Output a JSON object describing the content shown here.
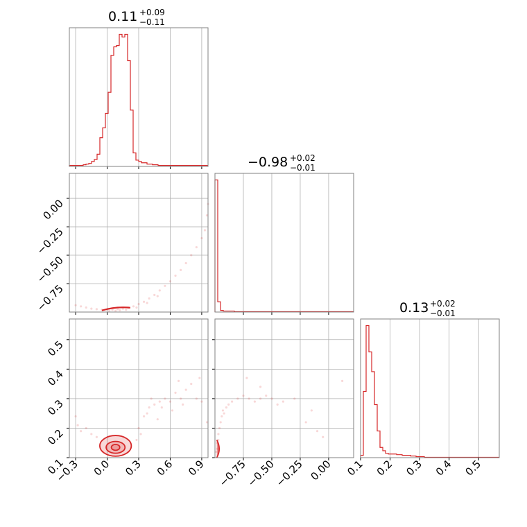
{
  "chart_data": {
    "type": "corner",
    "colors": {
      "series": "#d62728",
      "grid": "#b0b0b0",
      "frame": "#808080"
    },
    "grid": true,
    "parameters": [
      {
        "range": [
          -0.36,
          0.96
        ],
        "ticks": [
          -0.3,
          0.0,
          0.3,
          0.6,
          0.9
        ],
        "tick_labels": [
          "−0.3",
          "0.0",
          "0.3",
          "0.6",
          "0.9"
        ],
        "title_main": "0.11",
        "title_plus": "+0.09",
        "title_minus": "−0.11"
      },
      {
        "range": [
          -1.0,
          0.22
        ],
        "ticks": [
          -0.75,
          -0.5,
          -0.25,
          0.0
        ],
        "tick_labels": [
          "−0.75",
          "−0.50",
          "−0.25",
          "0.00"
        ],
        "title_main": "−0.98",
        "title_plus": "+0.02",
        "title_minus": "−0.01"
      },
      {
        "range": [
          0.1,
          0.57
        ],
        "ticks": [
          0.1,
          0.2,
          0.3,
          0.4,
          0.5
        ],
        "tick_labels": [
          "0.1",
          "0.2",
          "0.3",
          "0.4",
          "0.5"
        ],
        "title_main": "0.13",
        "title_plus": "+0.02",
        "title_minus": "−0.01"
      }
    ],
    "histograms": [
      {
        "param": 0,
        "bin_start": -0.36,
        "bin_width": 0.0264,
        "counts": [
          1,
          1,
          1,
          1,
          1,
          2,
          3,
          4,
          7,
          10,
          18,
          43,
          58,
          80,
          112,
          168,
          181,
          183,
          200,
          196,
          200,
          160,
          85,
          20,
          9,
          7,
          5,
          5,
          3,
          3,
          2,
          2,
          1,
          1,
          1,
          1,
          1,
          1,
          1,
          1,
          1,
          1,
          1,
          1,
          1,
          1,
          1,
          1,
          1,
          1
        ]
      },
      {
        "param": 1,
        "bin_start": -1.0,
        "bin_width": 0.0244,
        "counts": [
          200,
          15,
          2,
          1,
          1,
          1,
          1,
          0,
          0,
          0,
          0,
          0,
          0,
          0,
          0,
          0,
          0,
          0,
          0,
          0,
          0,
          0,
          0,
          0,
          0,
          0,
          0,
          0,
          0,
          0,
          0,
          0,
          0,
          0,
          0,
          0,
          0,
          0,
          0,
          0,
          0,
          0,
          0,
          0,
          0,
          0,
          0,
          0,
          0,
          0
        ]
      },
      {
        "param": 2,
        "bin_start": 0.1,
        "bin_width": 0.0094,
        "counts": [
          3,
          100,
          200,
          160,
          130,
          80,
          40,
          15,
          10,
          6,
          5,
          5,
          5,
          4,
          4,
          3,
          3,
          3,
          2,
          2,
          1,
          1,
          1,
          0,
          0,
          0,
          0,
          0,
          0,
          0,
          0,
          0,
          0,
          0,
          0,
          0,
          0,
          0,
          0,
          0,
          0,
          0,
          0,
          0,
          0,
          0,
          0,
          0,
          0,
          0
        ]
      }
    ],
    "pairs": [
      {
        "x_param": 0,
        "y_param": 1,
        "samples": [
          [
            -0.3,
            -0.94
          ],
          [
            -0.25,
            -0.95
          ],
          [
            -0.2,
            -0.96
          ],
          [
            -0.15,
            -0.97
          ],
          [
            -0.1,
            -0.975
          ],
          [
            -0.05,
            -0.98
          ],
          [
            0.0,
            -0.98
          ],
          [
            0.05,
            -0.98
          ],
          [
            0.1,
            -0.975
          ],
          [
            0.15,
            -0.97
          ],
          [
            0.2,
            -0.96
          ],
          [
            0.25,
            -0.95
          ],
          [
            0.3,
            -0.93
          ],
          [
            0.35,
            -0.91
          ],
          [
            0.4,
            -0.88
          ],
          [
            0.45,
            -0.85
          ],
          [
            0.5,
            -0.81
          ],
          [
            0.55,
            -0.77
          ],
          [
            0.6,
            -0.73
          ],
          [
            0.65,
            -0.68
          ],
          [
            0.7,
            -0.63
          ],
          [
            0.75,
            -0.57
          ],
          [
            0.8,
            -0.5
          ],
          [
            0.85,
            -0.43
          ],
          [
            0.9,
            -0.35
          ],
          [
            0.93,
            -0.28
          ],
          [
            0.95,
            -0.15
          ],
          [
            0.96,
            -0.05
          ],
          [
            0.02,
            -0.99
          ],
          [
            0.08,
            -0.99
          ],
          [
            0.12,
            -0.985
          ],
          [
            0.18,
            -0.98
          ],
          [
            0.28,
            -0.96
          ],
          [
            0.38,
            -0.92
          ],
          [
            0.48,
            -0.86
          ]
        ],
        "core": {
          "x_range": [
            -0.05,
            0.22
          ],
          "y_value": -0.98
        }
      },
      {
        "x_param": 0,
        "y_param": 2,
        "samples": [
          [
            -0.3,
            0.24
          ],
          [
            -0.25,
            0.19
          ],
          [
            -0.2,
            0.2
          ],
          [
            -0.15,
            0.18
          ],
          [
            -0.1,
            0.17
          ],
          [
            0.3,
            0.2
          ],
          [
            0.35,
            0.24
          ],
          [
            0.4,
            0.27
          ],
          [
            0.45,
            0.28
          ],
          [
            0.5,
            0.29
          ],
          [
            0.55,
            0.3
          ],
          [
            0.6,
            0.29
          ],
          [
            0.65,
            0.32
          ],
          [
            0.7,
            0.3
          ],
          [
            0.75,
            0.33
          ],
          [
            0.8,
            0.35
          ],
          [
            0.85,
            0.3
          ],
          [
            0.9,
            0.29
          ],
          [
            0.95,
            0.22
          ],
          [
            0.38,
            0.25
          ],
          [
            0.42,
            0.3
          ],
          [
            0.48,
            0.23
          ],
          [
            0.62,
            0.26
          ],
          [
            0.72,
            0.28
          ],
          [
            0.88,
            0.37
          ],
          [
            0.32,
            0.18
          ],
          [
            0.28,
            0.16
          ],
          [
            -0.28,
            0.21
          ],
          [
            0.52,
            0.27
          ],
          [
            0.68,
            0.36
          ]
        ],
        "contours": [
          {
            "center": [
              0.08,
              0.135
            ],
            "radii": [
              0.04,
              0.01
            ],
            "level": 1
          },
          {
            "center": [
              0.08,
              0.135
            ],
            "radii": [
              0.09,
              0.02
            ],
            "level": 2
          },
          {
            "center": [
              0.08,
              0.14
            ],
            "radii": [
              0.15,
              0.035
            ],
            "level": 3
          }
        ]
      },
      {
        "x_param": 1,
        "y_param": 2,
        "samples": [
          [
            -0.98,
            0.15
          ],
          [
            -0.97,
            0.18
          ],
          [
            -0.96,
            0.2
          ],
          [
            -0.95,
            0.22
          ],
          [
            -0.94,
            0.24
          ],
          [
            -0.93,
            0.26
          ],
          [
            -0.9,
            0.27
          ],
          [
            -0.88,
            0.28
          ],
          [
            -0.85,
            0.29
          ],
          [
            -0.8,
            0.3
          ],
          [
            -0.75,
            0.31
          ],
          [
            -0.7,
            0.3
          ],
          [
            -0.65,
            0.29
          ],
          [
            -0.6,
            0.3
          ],
          [
            -0.55,
            0.31
          ],
          [
            -0.5,
            0.3
          ],
          [
            -0.4,
            0.29
          ],
          [
            -0.3,
            0.3
          ],
          [
            -0.2,
            0.22
          ],
          [
            -0.15,
            0.26
          ],
          [
            -0.1,
            0.19
          ],
          [
            -0.05,
            0.17
          ],
          [
            0.12,
            0.36
          ],
          [
            -0.72,
            0.37
          ],
          [
            -0.6,
            0.34
          ],
          [
            -0.45,
            0.28
          ],
          [
            -0.99,
            0.12
          ],
          [
            -0.98,
            0.13
          ],
          [
            -0.97,
            0.16
          ],
          [
            -0.92,
            0.25
          ]
        ],
        "core": {
          "x_value": -0.99,
          "y_range": [
            0.1,
            0.16
          ]
        }
      }
    ]
  }
}
